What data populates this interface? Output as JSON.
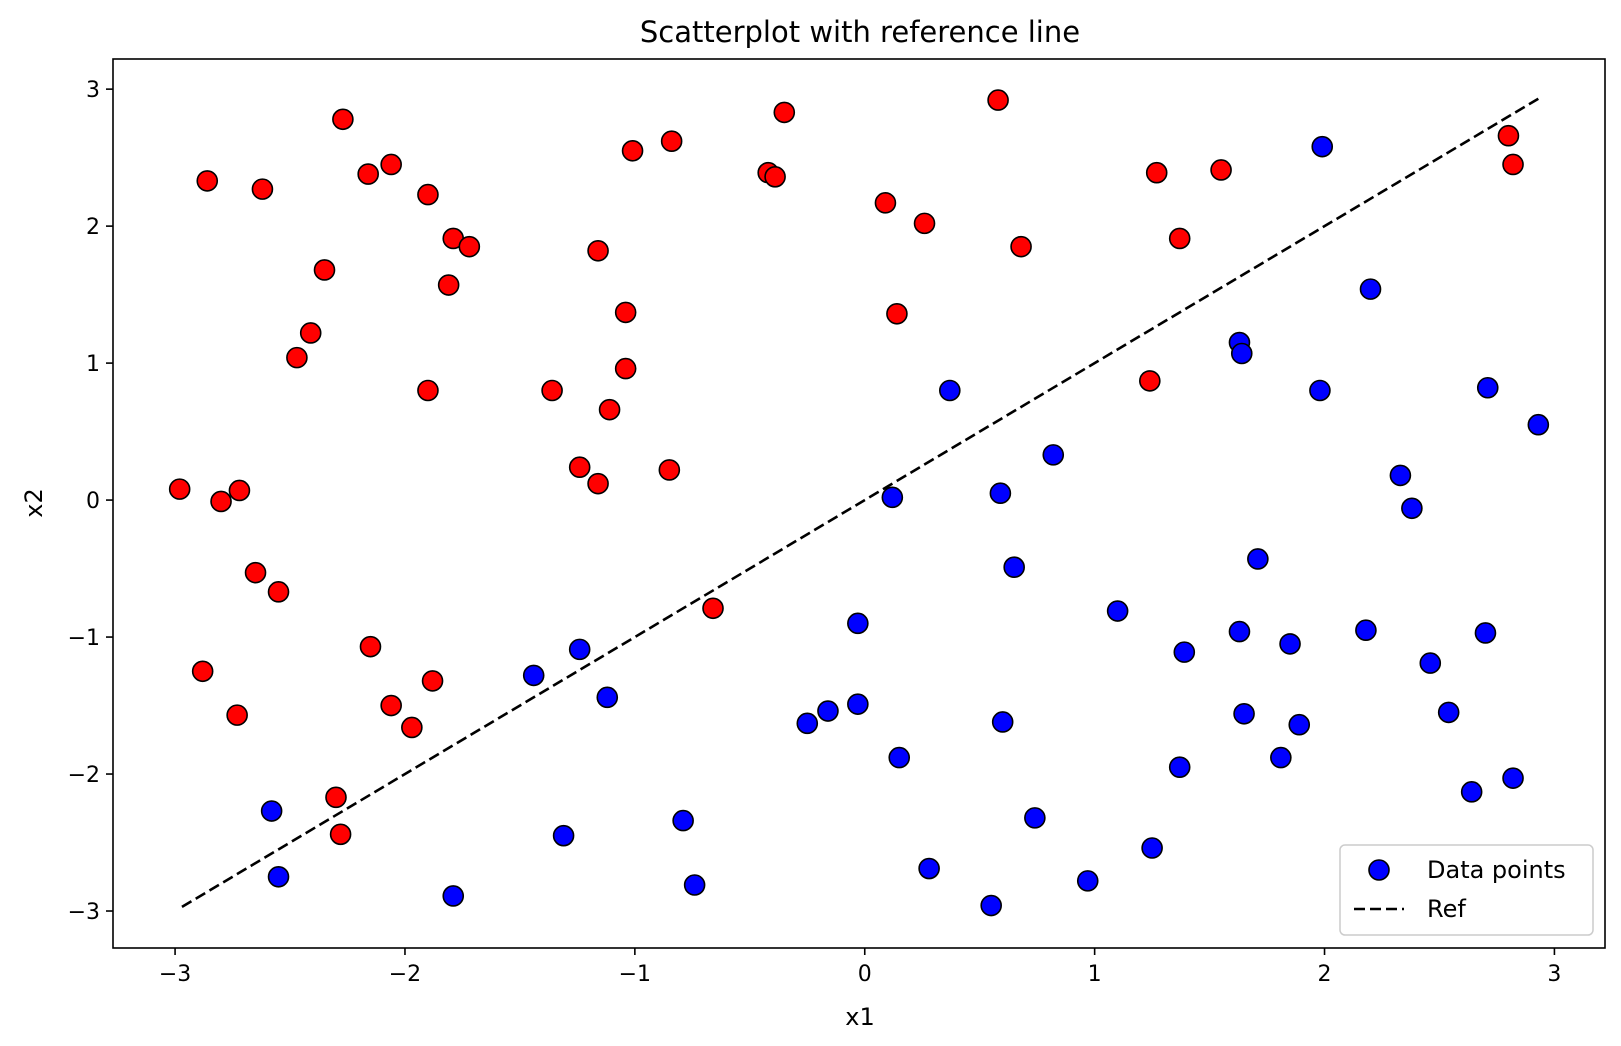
{
  "chart_data": {
    "type": "scatter",
    "title": "Scatterplot with reference line",
    "xlabel": "x1",
    "ylabel": "x2",
    "xlim": [
      -3.27,
      3.22
    ],
    "ylim": [
      -3.27,
      3.22
    ],
    "xticks": [
      -3,
      -2,
      -1,
      0,
      1,
      2,
      3
    ],
    "yticks": [
      -3,
      -2,
      -1,
      0,
      1,
      2,
      3
    ],
    "xtick_labels": [
      "−3",
      "−2",
      "−1",
      "0",
      "1",
      "2",
      "3"
    ],
    "ytick_labels": [
      "−3",
      "−2",
      "−1",
      "0",
      "1",
      "2",
      "3"
    ],
    "grid": false,
    "legend_position": "lower-right",
    "series": [
      {
        "name": "Data points",
        "kind": "points",
        "legend_color": "#0000ff",
        "edge_color": "#000000",
        "points": [
          {
            "x": 0.37,
            "y": 0.8,
            "color": "#0000ff"
          },
          {
            "x": 0.12,
            "y": 0.02,
            "color": "#0000ff"
          },
          {
            "x": 0.82,
            "y": 0.33,
            "color": "#0000ff"
          },
          {
            "x": 0.59,
            "y": 0.05,
            "color": "#0000ff"
          },
          {
            "x": 0.65,
            "y": -0.49,
            "color": "#0000ff"
          },
          {
            "x": 1.1,
            "y": -0.81,
            "color": "#0000ff"
          },
          {
            "x": 1.63,
            "y": 1.15,
            "color": "#0000ff"
          },
          {
            "x": 1.64,
            "y": 1.07,
            "color": "#0000ff"
          },
          {
            "x": 1.99,
            "y": 2.58,
            "color": "#0000ff"
          },
          {
            "x": 2.2,
            "y": 1.54,
            "color": "#0000ff"
          },
          {
            "x": 1.98,
            "y": 0.8,
            "color": "#0000ff"
          },
          {
            "x": 2.71,
            "y": 0.82,
            "color": "#0000ff"
          },
          {
            "x": 2.93,
            "y": 0.55,
            "color": "#0000ff"
          },
          {
            "x": 2.33,
            "y": 0.18,
            "color": "#0000ff"
          },
          {
            "x": 2.38,
            "y": -0.06,
            "color": "#0000ff"
          },
          {
            "x": 1.71,
            "y": -0.43,
            "color": "#0000ff"
          },
          {
            "x": 1.63,
            "y": -0.96,
            "color": "#0000ff"
          },
          {
            "x": 1.39,
            "y": -1.11,
            "color": "#0000ff"
          },
          {
            "x": 1.85,
            "y": -1.05,
            "color": "#0000ff"
          },
          {
            "x": 2.18,
            "y": -0.95,
            "color": "#0000ff"
          },
          {
            "x": 2.46,
            "y": -1.19,
            "color": "#0000ff"
          },
          {
            "x": 2.7,
            "y": -0.97,
            "color": "#0000ff"
          },
          {
            "x": 1.65,
            "y": -1.56,
            "color": "#0000ff"
          },
          {
            "x": 1.89,
            "y": -1.64,
            "color": "#0000ff"
          },
          {
            "x": 2.54,
            "y": -1.55,
            "color": "#0000ff"
          },
          {
            "x": 1.81,
            "y": -1.88,
            "color": "#0000ff"
          },
          {
            "x": 1.37,
            "y": -1.95,
            "color": "#0000ff"
          },
          {
            "x": 2.64,
            "y": -2.13,
            "color": "#0000ff"
          },
          {
            "x": 2.82,
            "y": -2.03,
            "color": "#0000ff"
          },
          {
            "x": 1.25,
            "y": -2.54,
            "color": "#0000ff"
          },
          {
            "x": 0.97,
            "y": -2.78,
            "color": "#0000ff"
          },
          {
            "x": 0.74,
            "y": -2.32,
            "color": "#0000ff"
          },
          {
            "x": 0.55,
            "y": -2.96,
            "color": "#0000ff"
          },
          {
            "x": 0.28,
            "y": -2.69,
            "color": "#0000ff"
          },
          {
            "x": 0.15,
            "y": -1.88,
            "color": "#0000ff"
          },
          {
            "x": 0.6,
            "y": -1.62,
            "color": "#0000ff"
          },
          {
            "x": -0.03,
            "y": -1.49,
            "color": "#0000ff"
          },
          {
            "x": -0.16,
            "y": -1.54,
            "color": "#0000ff"
          },
          {
            "x": -0.25,
            "y": -1.63,
            "color": "#0000ff"
          },
          {
            "x": -0.03,
            "y": -0.9,
            "color": "#0000ff"
          },
          {
            "x": -1.44,
            "y": -1.28,
            "color": "#0000ff"
          },
          {
            "x": -1.24,
            "y": -1.09,
            "color": "#0000ff"
          },
          {
            "x": -1.12,
            "y": -1.44,
            "color": "#0000ff"
          },
          {
            "x": -2.58,
            "y": -2.27,
            "color": "#0000ff"
          },
          {
            "x": -2.55,
            "y": -2.75,
            "color": "#0000ff"
          },
          {
            "x": -1.79,
            "y": -2.89,
            "color": "#0000ff"
          },
          {
            "x": -1.31,
            "y": -2.45,
            "color": "#0000ff"
          },
          {
            "x": -0.79,
            "y": -2.34,
            "color": "#0000ff"
          },
          {
            "x": -0.74,
            "y": -2.81,
            "color": "#0000ff"
          },
          {
            "x": -2.98,
            "y": 0.08,
            "color": "#ff0000"
          },
          {
            "x": -2.8,
            "y": -0.01,
            "color": "#ff0000"
          },
          {
            "x": -2.72,
            "y": 0.07,
            "color": "#ff0000"
          },
          {
            "x": -2.65,
            "y": -0.53,
            "color": "#ff0000"
          },
          {
            "x": -2.55,
            "y": -0.67,
            "color": "#ff0000"
          },
          {
            "x": -2.88,
            "y": -1.25,
            "color": "#ff0000"
          },
          {
            "x": -2.73,
            "y": -1.57,
            "color": "#ff0000"
          },
          {
            "x": -2.3,
            "y": -2.17,
            "color": "#ff0000"
          },
          {
            "x": -2.28,
            "y": -2.44,
            "color": "#ff0000"
          },
          {
            "x": -2.15,
            "y": -1.07,
            "color": "#ff0000"
          },
          {
            "x": -2.06,
            "y": -1.5,
            "color": "#ff0000"
          },
          {
            "x": -1.97,
            "y": -1.66,
            "color": "#ff0000"
          },
          {
            "x": -1.88,
            "y": -1.32,
            "color": "#ff0000"
          },
          {
            "x": -2.86,
            "y": 2.33,
            "color": "#ff0000"
          },
          {
            "x": -2.62,
            "y": 2.27,
            "color": "#ff0000"
          },
          {
            "x": -2.27,
            "y": 2.78,
            "color": "#ff0000"
          },
          {
            "x": -2.16,
            "y": 2.38,
            "color": "#ff0000"
          },
          {
            "x": -2.06,
            "y": 2.45,
            "color": "#ff0000"
          },
          {
            "x": -1.9,
            "y": 2.23,
            "color": "#ff0000"
          },
          {
            "x": -1.79,
            "y": 1.91,
            "color": "#ff0000"
          },
          {
            "x": -1.72,
            "y": 1.85,
            "color": "#ff0000"
          },
          {
            "x": -1.81,
            "y": 1.57,
            "color": "#ff0000"
          },
          {
            "x": -2.35,
            "y": 1.68,
            "color": "#ff0000"
          },
          {
            "x": -2.41,
            "y": 1.22,
            "color": "#ff0000"
          },
          {
            "x": -2.47,
            "y": 1.04,
            "color": "#ff0000"
          },
          {
            "x": -1.9,
            "y": 0.8,
            "color": "#ff0000"
          },
          {
            "x": -1.36,
            "y": 0.8,
            "color": "#ff0000"
          },
          {
            "x": -1.24,
            "y": 0.24,
            "color": "#ff0000"
          },
          {
            "x": -1.16,
            "y": 0.12,
            "color": "#ff0000"
          },
          {
            "x": -1.11,
            "y": 0.66,
            "color": "#ff0000"
          },
          {
            "x": -1.04,
            "y": 0.96,
            "color": "#ff0000"
          },
          {
            "x": -1.04,
            "y": 1.37,
            "color": "#ff0000"
          },
          {
            "x": -1.16,
            "y": 1.82,
            "color": "#ff0000"
          },
          {
            "x": -1.01,
            "y": 2.55,
            "color": "#ff0000"
          },
          {
            "x": -0.84,
            "y": 2.62,
            "color": "#ff0000"
          },
          {
            "x": -0.85,
            "y": 0.22,
            "color": "#ff0000"
          },
          {
            "x": -0.66,
            "y": -0.79,
            "color": "#ff0000"
          },
          {
            "x": -0.42,
            "y": 2.39,
            "color": "#ff0000"
          },
          {
            "x": -0.39,
            "y": 2.36,
            "color": "#ff0000"
          },
          {
            "x": -0.35,
            "y": 2.83,
            "color": "#ff0000"
          },
          {
            "x": 0.09,
            "y": 2.17,
            "color": "#ff0000"
          },
          {
            "x": 0.26,
            "y": 2.02,
            "color": "#ff0000"
          },
          {
            "x": 0.14,
            "y": 1.36,
            "color": "#ff0000"
          },
          {
            "x": 0.58,
            "y": 2.92,
            "color": "#ff0000"
          },
          {
            "x": 0.68,
            "y": 1.85,
            "color": "#ff0000"
          },
          {
            "x": 1.24,
            "y": 0.87,
            "color": "#ff0000"
          },
          {
            "x": 1.27,
            "y": 2.39,
            "color": "#ff0000"
          },
          {
            "x": 1.37,
            "y": 1.91,
            "color": "#ff0000"
          },
          {
            "x": 1.55,
            "y": 2.41,
            "color": "#ff0000"
          },
          {
            "x": 2.8,
            "y": 2.66,
            "color": "#ff0000"
          },
          {
            "x": 2.82,
            "y": 2.45,
            "color": "#ff0000"
          }
        ]
      },
      {
        "name": "Ref",
        "kind": "line",
        "color": "#000000",
        "dash": "dashed",
        "x": [
          -2.97,
          2.93
        ],
        "y": [
          -2.97,
          2.93
        ]
      }
    ]
  }
}
